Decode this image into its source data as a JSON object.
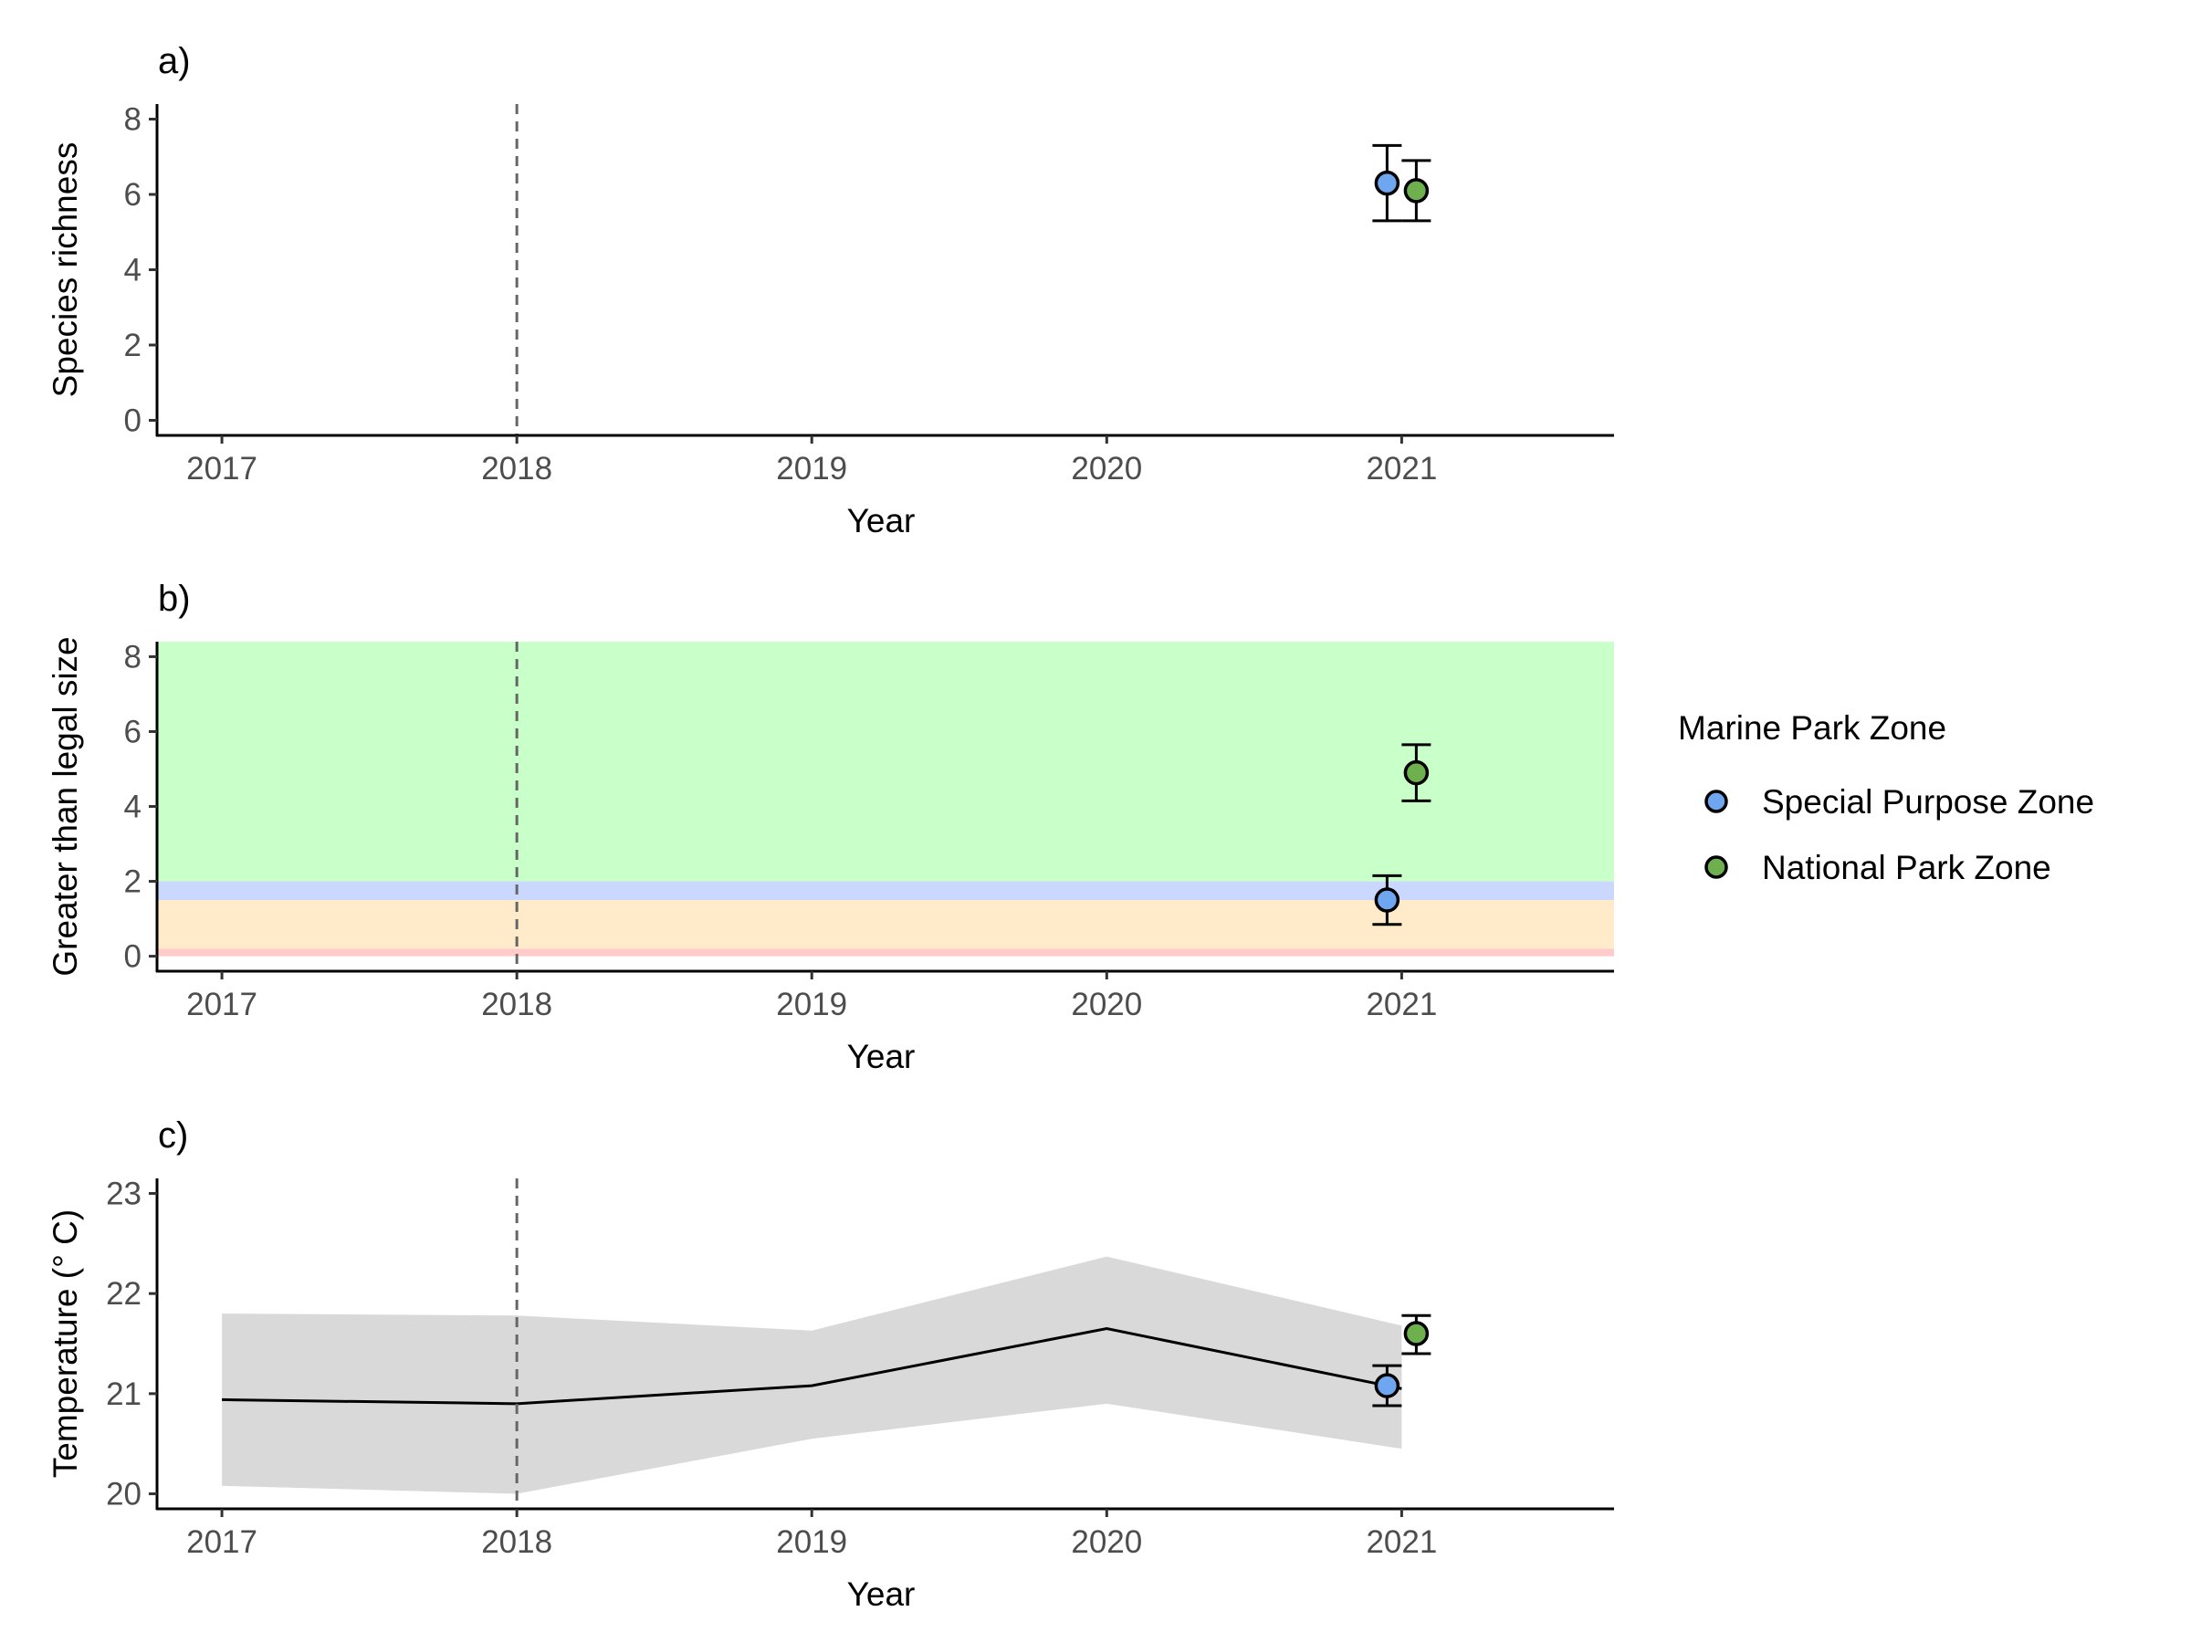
{
  "chart_data": [
    {
      "panel": "a)",
      "type": "scatter",
      "xlabel": "Year",
      "ylabel": "Species richness",
      "xlim": [
        2016.78,
        2021.72
      ],
      "ylim": [
        -0.4,
        8.4
      ],
      "x_ticks": [
        "2017",
        "2018",
        "2019",
        "2020",
        "2021"
      ],
      "y_ticks": [
        "0",
        "2",
        "4",
        "6",
        "8"
      ],
      "reference_line_x": 2018,
      "bands": [],
      "series": [
        {
          "name": "Special Purpose Zone",
          "x": [
            2021
          ],
          "y": [
            6.3
          ],
          "err_low": [
            5.3
          ],
          "err_high": [
            7.3
          ]
        },
        {
          "name": "National Park Zone",
          "x": [
            2021
          ],
          "y": [
            6.1
          ],
          "err_low": [
            5.3
          ],
          "err_high": [
            6.9
          ]
        }
      ]
    },
    {
      "panel": "b)",
      "type": "scatter",
      "xlabel": "Year",
      "ylabel": "Greater than legal size",
      "xlim": [
        2016.78,
        2021.72
      ],
      "ylim": [
        -0.4,
        8.4
      ],
      "x_ticks": [
        "2017",
        "2018",
        "2019",
        "2020",
        "2021"
      ],
      "y_ticks": [
        "0",
        "2",
        "4",
        "6",
        "8"
      ],
      "reference_line_x": 2018,
      "bands": [
        {
          "from": 2.0,
          "to": 8.4,
          "color": "#c9ffc9"
        },
        {
          "from": 1.5,
          "to": 2.0,
          "color": "#cad7ff"
        },
        {
          "from": 0.2,
          "to": 1.5,
          "color": "#ffebc9"
        },
        {
          "from": 0.0,
          "to": 0.2,
          "color": "#ffcaca"
        }
      ],
      "series": [
        {
          "name": "Special Purpose Zone",
          "x": [
            2021
          ],
          "y": [
            1.5
          ],
          "err_low": [
            0.85
          ],
          "err_high": [
            2.15
          ]
        },
        {
          "name": "National Park Zone",
          "x": [
            2021
          ],
          "y": [
            4.9
          ],
          "err_low": [
            4.15
          ],
          "err_high": [
            5.65
          ]
        }
      ]
    },
    {
      "panel": "c)",
      "type": "line",
      "xlabel": "Year",
      "ylabel": "Temperature (° C)",
      "xlim": [
        2016.78,
        2021.72
      ],
      "ylim": [
        19.85,
        23.15
      ],
      "x_ticks": [
        "2017",
        "2018",
        "2019",
        "2020",
        "2021"
      ],
      "y_ticks": [
        "20",
        "21",
        "22",
        "23"
      ],
      "reference_line_x": 2018,
      "bands": [],
      "mean_line": {
        "x": [
          2017,
          2018,
          2019,
          2020,
          2021
        ],
        "y": [
          20.94,
          20.9,
          21.08,
          21.65,
          21.05
        ]
      },
      "ribbon": {
        "x": [
          2017,
          2018,
          2019,
          2020,
          2021
        ],
        "low": [
          20.08,
          20.0,
          20.55,
          20.9,
          20.45
        ],
        "high": [
          21.8,
          21.78,
          21.63,
          22.37,
          21.68
        ],
        "color": "#d9d9d9"
      },
      "series": [
        {
          "name": "Special Purpose Zone",
          "x": [
            2021
          ],
          "y": [
            21.08
          ],
          "err_low": [
            20.88
          ],
          "err_high": [
            21.28
          ]
        },
        {
          "name": "National Park Zone",
          "x": [
            2021
          ],
          "y": [
            21.6
          ],
          "err_low": [
            21.4
          ],
          "err_high": [
            21.78
          ]
        }
      ]
    }
  ],
  "legend": {
    "title": "Marine Park Zone",
    "items": [
      {
        "label": "Special Purpose Zone",
        "color": "#6ea6f0"
      },
      {
        "label": "National Park Zone",
        "color": "#6fb04e"
      }
    ]
  },
  "colors": {
    "Special Purpose Zone": "#6ea6f0",
    "National Park Zone": "#6fb04e",
    "reference_line": "#666666"
  }
}
